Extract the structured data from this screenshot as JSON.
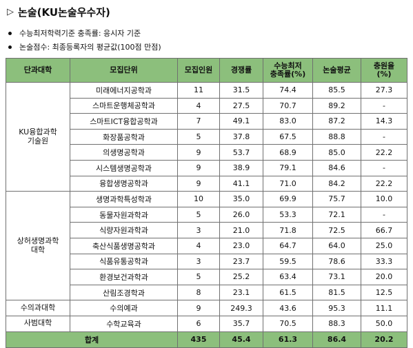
{
  "title": {
    "icon": "triangle-right-icon",
    "text": "논술(KU논술우수자)"
  },
  "notes": [
    "수능최저학력기준 충족률: 응시자 기준",
    "논술점수: 최종등록자의 평균값(100점 만점)"
  ],
  "table": {
    "headers": [
      "단과대학",
      "모집단위",
      "모집인원",
      "경쟁률",
      "수능최저\n충족률(%)",
      "논술평균",
      "충원율\n(%)"
    ],
    "groups": [
      {
        "college": "KU융합과학\n기술원",
        "rows": [
          [
            "미래에너지공학과",
            "11",
            "31.5",
            "74.4",
            "85.5",
            "27.3"
          ],
          [
            "스마트운행체공학과",
            "4",
            "27.5",
            "70.7",
            "89.2",
            "-"
          ],
          [
            "스마트ICT융합공학과",
            "7",
            "49.1",
            "83.0",
            "87.2",
            "14.3"
          ],
          [
            "화장품공학과",
            "5",
            "37.8",
            "67.5",
            "88.8",
            "-"
          ],
          [
            "의생명공학과",
            "9",
            "53.7",
            "68.9",
            "85.0",
            "22.2"
          ],
          [
            "시스템생명공학과",
            "9",
            "38.9",
            "79.1",
            "84.6",
            "-"
          ],
          [
            "융합생명공학과",
            "9",
            "41.1",
            "71.0",
            "84.2",
            "22.2"
          ]
        ]
      },
      {
        "college": "상허생명과학\n대학",
        "rows": [
          [
            "생명과학특성학과",
            "10",
            "35.0",
            "69.9",
            "75.7",
            "10.0"
          ],
          [
            "동물자원과학과",
            "5",
            "26.0",
            "53.3",
            "72.1",
            "-"
          ],
          [
            "식량자원과학과",
            "3",
            "21.0",
            "71.8",
            "72.5",
            "66.7"
          ],
          [
            "축산식품생명공학과",
            "4",
            "23.0",
            "64.7",
            "64.0",
            "25.0"
          ],
          [
            "식품유통공학과",
            "3",
            "23.7",
            "59.5",
            "78.6",
            "33.3"
          ],
          [
            "환경보건과학과",
            "5",
            "25.2",
            "63.4",
            "73.1",
            "20.0"
          ],
          [
            "산림조경학과",
            "8",
            "23.1",
            "61.5",
            "81.5",
            "12.5"
          ]
        ]
      },
      {
        "college": "수의과대학",
        "rows": [
          [
            "수의예과",
            "9",
            "249.3",
            "43.6",
            "95.3",
            "11.1"
          ]
        ]
      },
      {
        "college": "사범대학",
        "rows": [
          [
            "수학교육과",
            "6",
            "35.7",
            "70.5",
            "88.3",
            "50.0"
          ]
        ]
      }
    ],
    "total": [
      "합계",
      "435",
      "45.4",
      "61.3",
      "86.4",
      "20.2"
    ]
  }
}
